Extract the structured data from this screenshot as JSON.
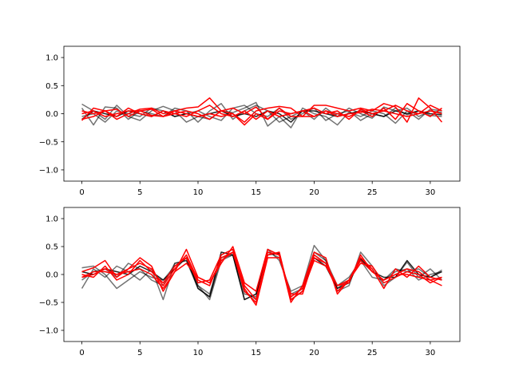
{
  "chart_data": [
    {
      "type": "line",
      "x": [
        0,
        1,
        2,
        3,
        4,
        5,
        6,
        7,
        8,
        9,
        10,
        11,
        12,
        13,
        14,
        15,
        16,
        17,
        18,
        19,
        20,
        21,
        22,
        23,
        24,
        25,
        26,
        27,
        28,
        29,
        30,
        31
      ],
      "xlim": [
        -1.55,
        32.55
      ],
      "ylim": [
        -1.2,
        1.2
      ],
      "xticks": [
        0,
        5,
        10,
        15,
        20,
        25,
        30
      ],
      "xtick_labels": [
        "0",
        "5",
        "10",
        "15",
        "20",
        "25",
        "30"
      ],
      "yticks": [
        -1.0,
        -0.5,
        0.0,
        0.5,
        1.0
      ],
      "ytick_labels": [
        "−1.0",
        "−0.5",
        "0.0",
        "0.5",
        "1.0"
      ],
      "grid": false,
      "series": [
        {
          "color": "#000000",
          "opacity": 0.55,
          "values": [
            0.17,
            0.05,
            -0.1,
            0.15,
            -0.05,
            -0.12,
            0.05,
            0.13,
            0.05,
            -0.15,
            -0.05,
            -0.1,
            0.05,
            0.02,
            0.1,
            0.2,
            -0.22,
            -0.05,
            -0.25,
            0.1,
            0.0,
            -0.05,
            -0.2,
            0.03,
            -0.05,
            0.05,
            0.0,
            -0.17,
            0.05,
            -0.1,
            0.08,
            0.05
          ]
        },
        {
          "color": "#000000",
          "opacity": 0.55,
          "values": [
            0.1,
            -0.2,
            0.12,
            0.1,
            -0.1,
            0.05,
            0.0,
            -0.05,
            0.1,
            0.05,
            -0.15,
            0.05,
            0.18,
            -0.1,
            0.05,
            0.15,
            0.05,
            -0.15,
            -0.05,
            0.05,
            -0.1,
            0.1,
            -0.05,
            0.1,
            0.0,
            -0.08,
            0.12,
            0.05,
            0.1,
            -0.05,
            0.05,
            0.02
          ]
        },
        {
          "color": "#000000",
          "opacity": 0.55,
          "values": [
            -0.05,
            0.0,
            -0.15,
            0.05,
            0.0,
            -0.05,
            0.1,
            0.05,
            -0.05,
            0.0,
            0.05,
            -0.05,
            -0.12,
            0.1,
            0.15,
            0.0,
            -0.05,
            0.1,
            -0.1,
            0.0,
            0.1,
            -0.12,
            0.0,
            0.05,
            -0.12,
            0.0,
            -0.05,
            0.1,
            -0.02,
            0.05,
            -0.03,
            -0.05
          ]
        },
        {
          "color": "#000000",
          "opacity": 0.85,
          "values": [
            -0.1,
            0.05,
            0.0,
            -0.05,
            0.05,
            0.0,
            -0.05,
            0.05,
            -0.05,
            0.0,
            -0.05,
            0.0,
            0.05,
            -0.05,
            0.0,
            -0.05,
            0.05,
            0.0,
            -0.15,
            0.05,
            0.05,
            0.0,
            -0.05,
            0.0,
            0.05,
            0.0,
            -0.05,
            0.05,
            0.0,
            0.05,
            0.0,
            -0.02
          ]
        },
        {
          "color": "#ff0000",
          "opacity": 1.0,
          "values": [
            -0.12,
            0.1,
            0.05,
            -0.1,
            0.0,
            0.08,
            0.1,
            0.0,
            0.05,
            0.1,
            0.12,
            0.28,
            0.05,
            0.0,
            -0.15,
            0.05,
            0.1,
            0.13,
            0.1,
            -0.05,
            0.15,
            0.15,
            0.1,
            0.05,
            0.1,
            0.05,
            0.18,
            0.12,
            -0.15,
            0.28,
            0.1,
            -0.15
          ]
        },
        {
          "color": "#ff0000",
          "opacity": 1.0,
          "values": [
            0.05,
            0.0,
            0.05,
            0.08,
            -0.05,
            0.05,
            0.08,
            -0.05,
            0.0,
            0.05,
            0.0,
            -0.1,
            0.05,
            0.1,
            0.0,
            0.12,
            -0.1,
            0.05,
            0.0,
            0.05,
            0.1,
            0.0,
            0.05,
            -0.1,
            0.08,
            0.0,
            0.05,
            0.15,
            0.05,
            0.0,
            0.15,
            0.05
          ]
        },
        {
          "color": "#ff0000",
          "opacity": 1.0,
          "values": [
            -0.1,
            -0.05,
            0.05,
            -0.05,
            0.1,
            0.0,
            -0.05,
            0.05,
            0.0,
            -0.05,
            0.05,
            0.15,
            0.0,
            -0.05,
            0.05,
            -0.1,
            0.05,
            -0.05,
            0.0,
            0.05,
            -0.05,
            0.05,
            0.0,
            -0.05,
            0.05,
            -0.05,
            0.1,
            -0.1,
            0.18,
            0.05,
            -0.05,
            0.1
          ]
        },
        {
          "color": "#ff0000",
          "opacity": 1.0,
          "values": [
            0.0,
            0.05,
            -0.05,
            0.0,
            0.05,
            0.05,
            -0.03,
            -0.05,
            0.05,
            0.0,
            -0.05,
            0.0,
            -0.05,
            0.0,
            -0.2,
            0.0,
            -0.1,
            0.1,
            -0.05,
            -0.05,
            -0.05,
            0.05,
            -0.05,
            0.0,
            0.02,
            0.08,
            0.05,
            0.0,
            -0.05,
            0.0,
            0.05,
            0.0
          ]
        }
      ]
    },
    {
      "type": "line",
      "x": [
        0,
        1,
        2,
        3,
        4,
        5,
        6,
        7,
        8,
        9,
        10,
        11,
        12,
        13,
        14,
        15,
        16,
        17,
        18,
        19,
        20,
        21,
        22,
        23,
        24,
        25,
        26,
        27,
        28,
        29,
        30,
        31
      ],
      "xlim": [
        -1.55,
        32.55
      ],
      "ylim": [
        -1.2,
        1.2
      ],
      "xticks": [
        0,
        5,
        10,
        15,
        20,
        25,
        30
      ],
      "xtick_labels": [
        "0",
        "5",
        "10",
        "15",
        "20",
        "25",
        "30"
      ],
      "yticks": [
        -1.0,
        -0.5,
        0.0,
        0.5,
        1.0
      ],
      "ytick_labels": [
        "−1.0",
        "−0.5",
        "0.0",
        "0.5",
        "1.0"
      ],
      "grid": false,
      "series": [
        {
          "color": "#000000",
          "opacity": 0.55,
          "values": [
            -0.25,
            0.1,
            -0.05,
            0.15,
            0.05,
            -0.1,
            0.1,
            -0.45,
            0.2,
            0.25,
            -0.2,
            -0.45,
            0.25,
            0.35,
            -0.45,
            -0.35,
            0.45,
            0.25,
            -0.3,
            -0.2,
            0.52,
            0.25,
            -0.3,
            -0.2,
            0.4,
            0.15,
            -0.2,
            -0.05,
            0.22,
            -0.05,
            0.1,
            -0.1
          ]
        },
        {
          "color": "#000000",
          "opacity": 0.55,
          "values": [
            0.12,
            0.15,
            0.0,
            -0.25,
            -0.1,
            0.05,
            -0.05,
            -0.1,
            0.15,
            0.3,
            -0.2,
            -0.35,
            0.35,
            0.45,
            -0.3,
            -0.45,
            0.45,
            0.35,
            -0.4,
            -0.25,
            0.35,
            0.2,
            -0.25,
            -0.1,
            0.3,
            0.05,
            -0.1,
            0.05,
            0.1,
            -0.1,
            0.0,
            0.05
          ]
        },
        {
          "color": "#000000",
          "opacity": 0.55,
          "values": [
            -0.1,
            0.05,
            0.1,
            -0.05,
            0.2,
            0.1,
            -0.1,
            -0.2,
            0.2,
            0.25,
            -0.25,
            -0.4,
            0.3,
            0.35,
            -0.35,
            -0.4,
            0.4,
            0.3,
            -0.35,
            -0.25,
            0.4,
            0.25,
            -0.2,
            -0.05,
            0.25,
            -0.05,
            -0.1,
            0.1,
            0.05,
            0.1,
            -0.05,
            0.08
          ]
        },
        {
          "color": "#000000",
          "opacity": 0.85,
          "values": [
            0.05,
            0.0,
            0.1,
            0.05,
            0.0,
            0.15,
            0.05,
            -0.1,
            0.1,
            0.3,
            -0.25,
            -0.4,
            0.4,
            0.35,
            -0.45,
            -0.35,
            0.35,
            0.38,
            -0.45,
            -0.3,
            0.3,
            0.15,
            -0.25,
            -0.15,
            0.28,
            0.05,
            -0.05,
            -0.05,
            0.25,
            0.0,
            -0.05,
            0.05
          ]
        },
        {
          "color": "#ff0000",
          "opacity": 1.0,
          "values": [
            0.05,
            0.12,
            0.25,
            -0.05,
            0.1,
            0.3,
            0.15,
            -0.3,
            0.05,
            0.45,
            -0.05,
            -0.15,
            0.2,
            0.5,
            -0.15,
            -0.3,
            0.45,
            0.35,
            -0.5,
            -0.2,
            0.4,
            0.3,
            -0.35,
            -0.1,
            0.3,
            0.1,
            -0.25,
            0.1,
            -0.05,
            0.15,
            -0.05,
            -0.1
          ]
        },
        {
          "color": "#ff0000",
          "opacity": 1.0,
          "values": [
            -0.05,
            0.0,
            0.1,
            0.0,
            0.1,
            0.2,
            0.1,
            -0.2,
            0.1,
            0.35,
            -0.1,
            -0.2,
            0.3,
            0.4,
            -0.3,
            -0.5,
            0.35,
            0.4,
            -0.45,
            -0.3,
            0.25,
            0.15,
            -0.2,
            -0.15,
            0.35,
            0.05,
            -0.1,
            0.0,
            0.1,
            0.05,
            -0.1,
            -0.2
          ]
        },
        {
          "color": "#ff0000",
          "opacity": 1.0,
          "values": [
            0.0,
            -0.05,
            0.15,
            -0.1,
            0.0,
            0.25,
            0.05,
            -0.15,
            0.15,
            0.3,
            -0.15,
            -0.1,
            0.35,
            0.45,
            -0.25,
            -0.55,
            0.3,
            0.3,
            -0.35,
            -0.35,
            0.3,
            0.2,
            -0.3,
            -0.1,
            0.2,
            0.15,
            -0.15,
            -0.05,
            0.05,
            0.0,
            -0.15,
            -0.05
          ]
        },
        {
          "color": "#ff0000",
          "opacity": 1.0,
          "values": [
            -0.05,
            0.05,
            0.05,
            0.0,
            0.05,
            0.1,
            0.0,
            -0.25,
            0.05,
            0.2,
            -0.05,
            -0.15,
            0.25,
            0.4,
            -0.2,
            -0.45,
            0.4,
            0.35,
            -0.4,
            -0.25,
            0.35,
            0.2,
            -0.2,
            -0.1,
            0.25,
            0.05,
            -0.1,
            0.0,
            0.0,
            -0.05,
            -0.1,
            -0.05
          ]
        }
      ]
    }
  ]
}
